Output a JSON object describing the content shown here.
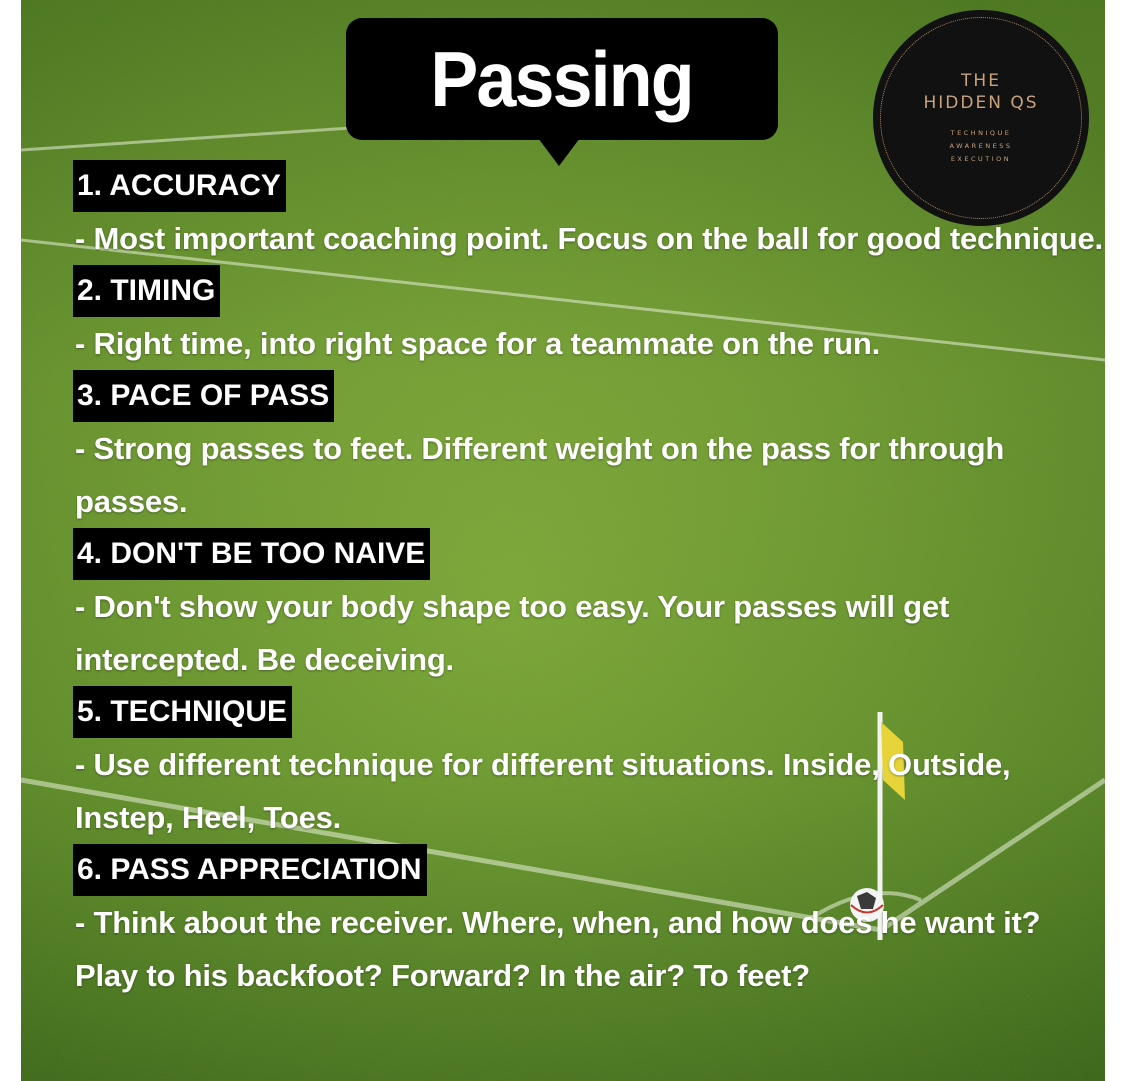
{
  "title": "Passing",
  "logo": {
    "name": "THE\nHIDDEN QS",
    "tagline": [
      "TECHNIQUE",
      "AWARENESS",
      "EXECUTION"
    ]
  },
  "sections": [
    {
      "heading": "1. ACCURACY",
      "body": "- Most important coaching point. Focus on the ball for good technique."
    },
    {
      "heading": "2. TIMING",
      "body": "- Right time, into right space for a teammate on the run."
    },
    {
      "heading": "3. PACE OF PASS",
      "body": "- Strong passes to feet. Different weight on the pass for through passes."
    },
    {
      "heading": "4. DON'T BE TOO NAIVE",
      "body": "- Don't show your body shape too easy. Your passes will get intercepted. Be deceiving."
    },
    {
      "heading": "5. TECHNIQUE",
      "body": "- Use different technique for different situations. Inside, Outside, Instep, Heel, Toes."
    },
    {
      "heading": "6. PASS APPRECIATION",
      "body": "- Think about the receiver. Where, when, and how does he want it? Play to his backfoot? Forward? In the air? To feet?"
    }
  ],
  "colors": {
    "grass_dark": "#3f6b1c",
    "grass_light": "#7faa38",
    "label_bg": "#000000",
    "text": "#ffffff",
    "logo_gold": "#c9a27a",
    "flag": "#e6d43a"
  }
}
